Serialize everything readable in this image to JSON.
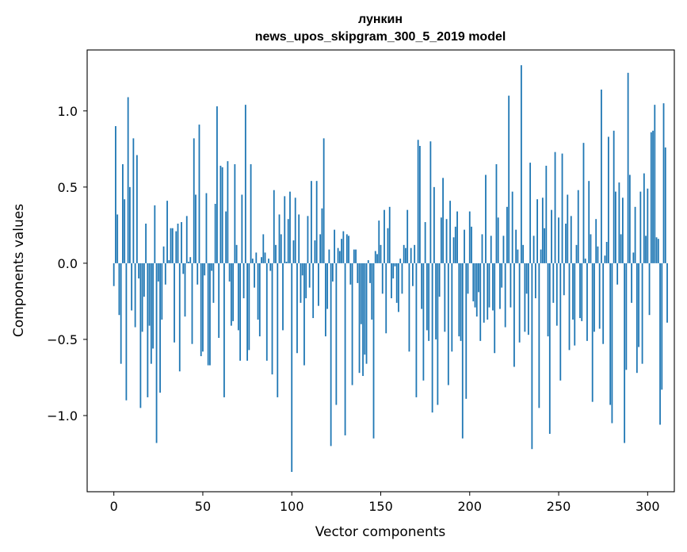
{
  "chart_data": {
    "type": "bar",
    "title": "лункин",
    "subtitle": "news_upos_skipgram_300_5_2019 model",
    "xlabel": "Vector components",
    "ylabel": "Components values",
    "xlim": [
      -15,
      315
    ],
    "ylim": [
      -1.5,
      1.4
    ],
    "xticks": [
      0,
      50,
      100,
      150,
      200,
      250,
      300
    ],
    "xtick_labels": [
      "0",
      "50",
      "100",
      "150",
      "200",
      "250",
      "300"
    ],
    "yticks": [
      -1.0,
      -0.5,
      0.0,
      0.5,
      1.0
    ],
    "ytick_labels": [
      "−1.0",
      "−0.5",
      "0.0",
      "0.5",
      "1.0"
    ],
    "grid": false,
    "legend": "none",
    "bar_color": "#1f77b4",
    "values": [
      -0.15,
      0.9,
      0.32,
      -0.34,
      -0.66,
      0.65,
      0.42,
      -0.9,
      1.09,
      0.5,
      -0.31,
      0.82,
      -0.42,
      0.71,
      -0.1,
      -0.95,
      -0.45,
      -0.22,
      0.26,
      -0.88,
      -0.41,
      -0.66,
      -0.56,
      0.38,
      -1.18,
      -0.12,
      -0.85,
      -0.37,
      0.11,
      -0.14,
      0.41,
      0.02,
      0.23,
      0.23,
      -0.52,
      0.21,
      0.26,
      -0.71,
      0.27,
      -0.07,
      -0.35,
      0.31,
      0.01,
      0.04,
      -0.53,
      0.82,
      0.45,
      -0.14,
      0.91,
      -0.61,
      -0.58,
      -0.08,
      0.46,
      -0.67,
      -0.67,
      -0.05,
      -0.26,
      0.39,
      1.03,
      -0.49,
      0.64,
      0.63,
      -0.88,
      0.34,
      0.67,
      -0.12,
      -0.41,
      -0.38,
      0.65,
      0.12,
      -0.44,
      -0.64,
      0.45,
      -0.23,
      1.04,
      -0.64,
      -0.57,
      0.65,
      0.03,
      -0.16,
      0.07,
      -0.37,
      -0.48,
      0.04,
      0.19,
      0.07,
      -0.64,
      0.03,
      -0.05,
      -0.73,
      0.48,
      0.12,
      -0.88,
      0.32,
      0.19,
      -0.44,
      0.44,
      0.01,
      0.29,
      0.47,
      -1.37,
      0.15,
      0.43,
      -0.59,
      0.32,
      -0.26,
      -0.08,
      -0.67,
      -0.23,
      0.31,
      -0.16,
      0.54,
      -0.36,
      0.15,
      0.54,
      -0.28,
      0.19,
      0.36,
      0.82,
      -0.48,
      -0.3,
      0.09,
      -1.2,
      -0.12,
      0.22,
      -0.93,
      0.1,
      0.08,
      0.16,
      0.21,
      -1.13,
      0.19,
      0.18,
      -0.14,
      -0.8,
      0.09,
      0.09,
      -0.13,
      -0.72,
      -0.4,
      -0.74,
      -0.6,
      -0.66,
      0.02,
      -0.13,
      -0.37,
      -1.15,
      0.08,
      0.06,
      0.28,
      0.12,
      -0.2,
      0.35,
      -0.46,
      0.23,
      0.37,
      -0.23,
      -0.1,
      -0.02,
      -0.26,
      -0.32,
      0.03,
      -0.2,
      0.12,
      0.1,
      0.35,
      -0.58,
      0.1,
      -0.15,
      0.12,
      -0.88,
      0.81,
      0.77,
      -0.3,
      -0.77,
      0.27,
      -0.44,
      -0.51,
      0.8,
      -0.98,
      0.5,
      -0.5,
      -0.93,
      -0.22,
      0.3,
      0.56,
      -0.45,
      0.29,
      -0.8,
      0.41,
      -0.58,
      0.17,
      0.24,
      0.34,
      -0.48,
      -0.51,
      -1.15,
      0.22,
      -0.89,
      -0.2,
      0.34,
      0.24,
      -0.25,
      -0.29,
      -0.35,
      -0.19,
      -0.51,
      0.19,
      -0.39,
      0.58,
      -0.37,
      -0.29,
      0.18,
      -0.31,
      -0.59,
      0.65,
      0.3,
      -0.3,
      -0.16,
      0.18,
      -0.42,
      0.37,
      1.1,
      -0.29,
      0.47,
      -0.68,
      0.22,
      0.09,
      -0.52,
      1.3,
      0.12,
      -0.45,
      -0.2,
      -0.47,
      0.66,
      -1.22,
      0.18,
      -0.23,
      0.42,
      -0.95,
      0.09,
      0.43,
      0.23,
      0.64,
      -0.48,
      -1.12,
      0.35,
      -0.26,
      0.73,
      -0.41,
      0.3,
      -0.77,
      0.72,
      -0.21,
      0.26,
      0.45,
      -0.57,
      0.31,
      -0.37,
      -0.54,
      0.12,
      0.48,
      -0.36,
      -0.38,
      0.79,
      0.03,
      -0.51,
      0.54,
      0.19,
      -0.91,
      -0.45,
      0.29,
      0.11,
      -0.43,
      1.14,
      -0.53,
      0.05,
      0.14,
      0.83,
      -0.93,
      -1.05,
      0.87,
      0.47,
      -0.14,
      0.53,
      0.19,
      0.43,
      -1.18,
      -0.7,
      1.25,
      0.58,
      -0.26,
      0.07,
      0.37,
      -0.72,
      -0.55,
      0.47,
      -0.66,
      0.59,
      0.18,
      0.49,
      -0.34,
      0.86,
      0.87,
      1.04,
      0.17,
      0.16,
      -1.06,
      -0.83,
      1.05,
      0.76,
      -0.39
    ]
  }
}
